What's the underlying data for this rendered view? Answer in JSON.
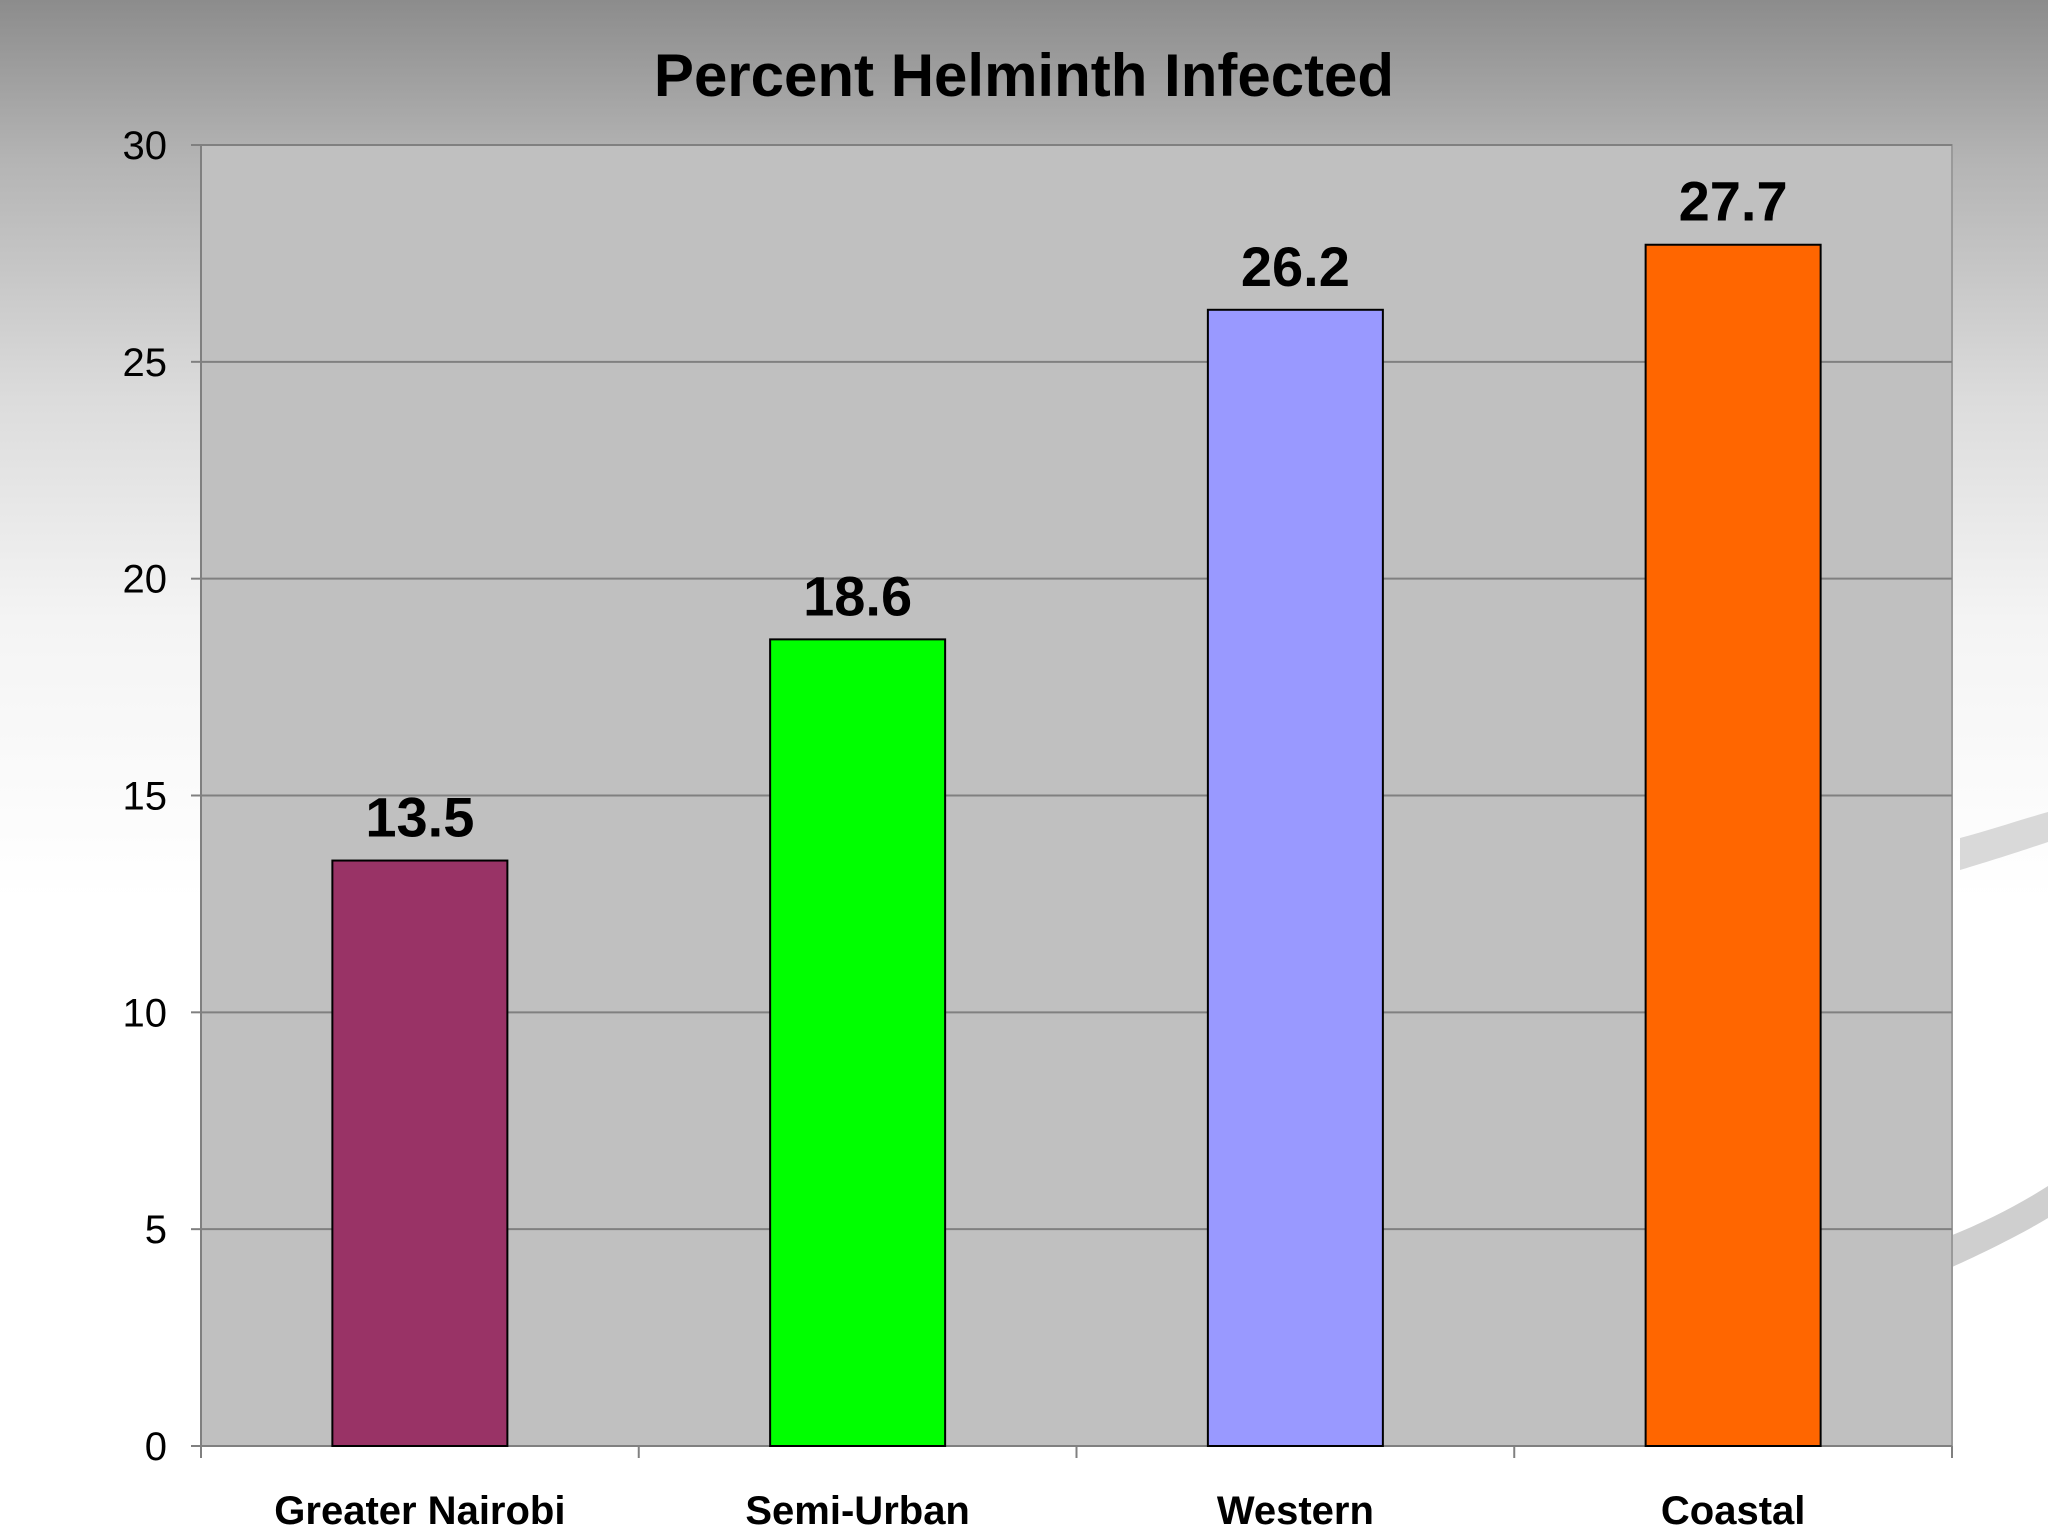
{
  "chart_data": {
    "type": "bar",
    "title": "Percent Helminth Infected",
    "xlabel": "",
    "ylabel": "",
    "categories": [
      "Greater Nairobi",
      "Semi-Urban",
      "Western",
      "Coastal"
    ],
    "values": [
      13.5,
      18.6,
      26.2,
      27.7
    ],
    "data_labels": [
      "13.5",
      "18.6",
      "26.2",
      "27.7"
    ],
    "bar_colors": [
      "#993366",
      "#00ff00",
      "#9999ff",
      "#ff6600"
    ],
    "ylim": [
      0,
      30
    ],
    "yticks": [
      0,
      5,
      10,
      15,
      20,
      25,
      30
    ],
    "grid": true,
    "legend": "none",
    "plot_background": "#c0c0c0"
  }
}
